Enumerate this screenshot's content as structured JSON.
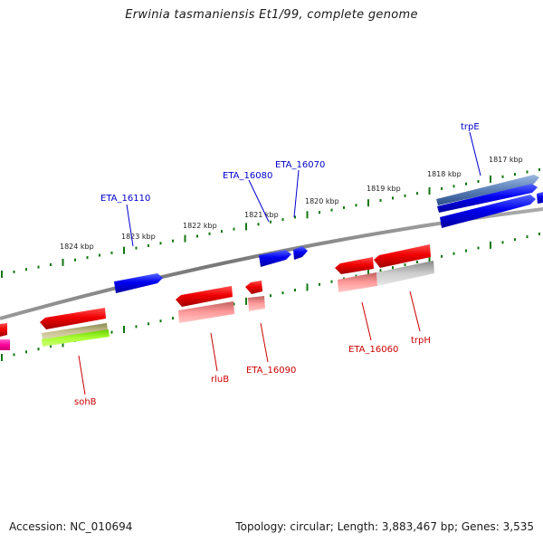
{
  "title": "Erwinia tasmaniensis Et1/99, complete genome",
  "footer": {
    "accession": "Accession: NC_010694",
    "topology": "Topology: circular; Length: 3,883,467 bp; Genes: 3,535"
  },
  "colors": {
    "forward_gene": "#0000ee",
    "reverse_gene": "#ee0000",
    "forward_label": "#0000cc",
    "reverse_label": "#cc0000",
    "tick": "#117711",
    "backbone": "#888888"
  },
  "ticks": [
    "1824 kbp",
    "1823 kbp",
    "1822 kbp",
    "1821 kbp",
    "1820 kbp",
    "1819 kbp",
    "1818 kbp",
    "1817 kbp"
  ],
  "genes": {
    "forward": [
      "ETA_16110",
      "ETA_16080",
      "ETA_16070",
      "trpE"
    ],
    "reverse": [
      "sohB",
      "rluB",
      "ETA_16090",
      "ETA_16060",
      "trpH"
    ]
  }
}
